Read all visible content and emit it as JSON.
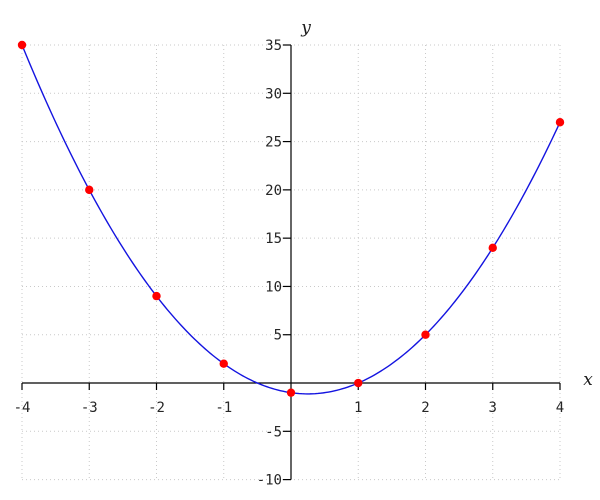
{
  "page": {
    "background": "#ffffff"
  },
  "chart_data": {
    "type": "line",
    "title": "",
    "xlabel": "x",
    "ylabel": "y",
    "x_range": [
      -4,
      4
    ],
    "y_range": [
      -10,
      35
    ],
    "x_ticks": [
      -4,
      -3,
      -2,
      -1,
      1,
      2,
      3,
      4
    ],
    "y_ticks": [
      -10,
      -5,
      5,
      10,
      15,
      20,
      25,
      30,
      35
    ],
    "grid": true,
    "grid_style": "dotted",
    "axis_style": "through-origin",
    "legend": "none",
    "curve": {
      "kind": "polynomial",
      "coefficients": [
        2,
        -1,
        -1
      ],
      "x_domain": [
        -4,
        4
      ],
      "color": "#1414e0",
      "width": 1.4
    },
    "points": {
      "color": "#ff0000",
      "radius": 4.2,
      "data": [
        [
          -4,
          35
        ],
        [
          -3,
          20
        ],
        [
          -2,
          9
        ],
        [
          -1,
          2
        ],
        [
          0,
          -1
        ],
        [
          1,
          0
        ],
        [
          2,
          5
        ],
        [
          3,
          14
        ],
        [
          4,
          27
        ]
      ]
    },
    "colors": {
      "grid": "#c9c9c9",
      "axis": "#000000",
      "tick_label": "#262626",
      "axis_label": "#1a1a1a"
    }
  }
}
